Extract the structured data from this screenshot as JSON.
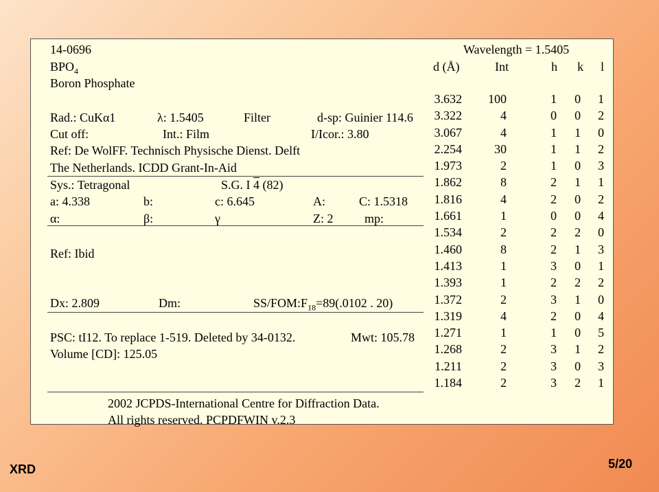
{
  "card": {
    "pdf_number": "14-0696",
    "wavelength": "Wavelength = 1.5405",
    "formula": "BPO",
    "formula_sub": "4",
    "name": "Boron Phosphate",
    "col_headers": {
      "d": "d (Å)",
      "int": "Int",
      "h": "h",
      "k": "k",
      "l": "l"
    },
    "rad_line": {
      "rad": "Rad.: CuKα1",
      "lambda": "λ: 1.5405",
      "filter": "Filter",
      "dsp": "d-sp: Guinier 114.6"
    },
    "cutoff_line": {
      "cutoff": "Cut off:",
      "int": "Int.: Film",
      "icor": "I/Icor.:  3.80"
    },
    "ref_line1": "Ref: De WolFF. Technisch Physische Dienst.  Delft",
    "ref_line2": "The Netherlands. ICDD Grant-In-Aid",
    "sys_line": {
      "sys": "Sys.: Tetragonal",
      "sg_prefix": "S.G. I ",
      "sg_bar": "4",
      "sg_suffix": " (82)"
    },
    "cell_line": {
      "a": "a: 4.338",
      "b": "b:",
      "c": "c:  6.645",
      "A": "A:",
      "C": "C:  1.5318"
    },
    "angles_line": {
      "alpha": "α:",
      "beta": "β:",
      "gamma": "γ",
      "z": "Z:  2",
      "mp": "mp:"
    },
    "ref_ibid": "Ref: Ibid",
    "dx_line": {
      "dx": "Dx:  2.809",
      "dm": "Dm:",
      "ssfom_pre": "SS/FOM:F",
      "ssfom_sub": "18",
      "ssfom_post": "=89(.0102 . 20)"
    },
    "psc_line": {
      "psc": "PSC: tI12. To replace 1-519. Deleted by 34-0132.",
      "mwt": "Mwt: 105.78"
    },
    "volume": "Volume [CD]:  125.05",
    "copyright1": "2002 JCPDS-International Centre for Diffraction Data.",
    "copyright2": "All rights reserved. PCPDFWIN  v.2.3",
    "peaks": [
      {
        "d": "3.632",
        "int": "100",
        "h": "1",
        "k": "0",
        "l": "1"
      },
      {
        "d": "3.322",
        "int": "4",
        "h": "0",
        "k": "0",
        "l": "2"
      },
      {
        "d": "3.067",
        "int": "4",
        "h": "1",
        "k": "1",
        "l": "0"
      },
      {
        "d": "2.254",
        "int": "30",
        "h": "1",
        "k": "1",
        "l": "2"
      },
      {
        "d": "1.973",
        "int": "2",
        "h": "1",
        "k": "0",
        "l": "3"
      },
      {
        "d": "1.862",
        "int": "8",
        "h": "2",
        "k": "1",
        "l": "1"
      },
      {
        "d": "1.816",
        "int": "4",
        "h": "2",
        "k": "0",
        "l": "2"
      },
      {
        "d": "1.661",
        "int": "1",
        "h": "0",
        "k": "0",
        "l": "4"
      },
      {
        "d": "1.534",
        "int": "2",
        "h": "2",
        "k": "2",
        "l": "0"
      },
      {
        "d": "1.460",
        "int": "8",
        "h": "2",
        "k": "1",
        "l": "3"
      },
      {
        "d": "1.413",
        "int": "1",
        "h": "3",
        "k": "0",
        "l": "1"
      },
      {
        "d": "1.393",
        "int": "1",
        "h": "2",
        "k": "2",
        "l": "2"
      },
      {
        "d": "1.372",
        "int": "2",
        "h": "3",
        "k": "1",
        "l": "0"
      },
      {
        "d": "1.319",
        "int": "4",
        "h": "2",
        "k": "0",
        "l": "4"
      },
      {
        "d": "1.271",
        "int": "1",
        "h": "1",
        "k": "0",
        "l": "5"
      },
      {
        "d": "1.268",
        "int": "2",
        "h": "3",
        "k": "1",
        "l": "2"
      },
      {
        "d": "1.211",
        "int": "2",
        "h": "3",
        "k": "0",
        "l": "3"
      },
      {
        "d": "1.184",
        "int": "2",
        "h": "3",
        "k": "2",
        "l": "1"
      }
    ]
  },
  "footer": {
    "left": "XRD",
    "right": "5/20"
  }
}
